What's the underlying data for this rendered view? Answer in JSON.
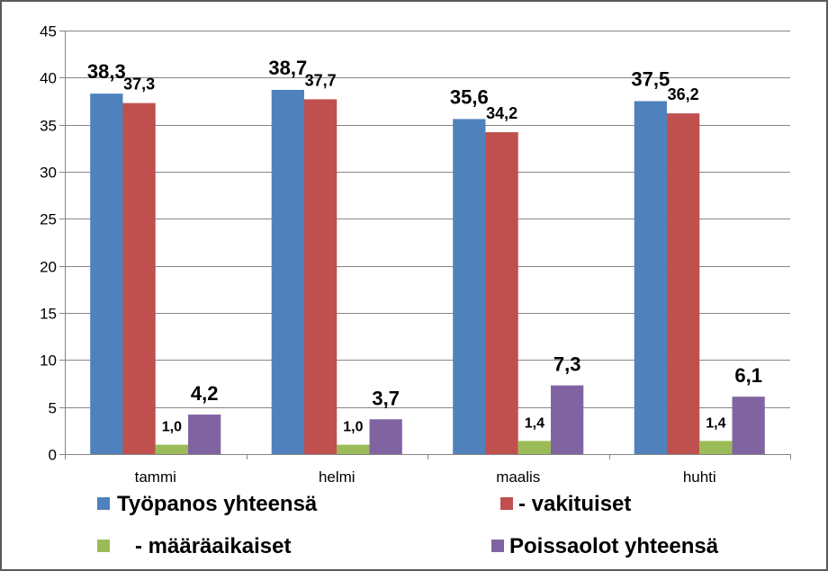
{
  "chart_data": {
    "type": "bar",
    "categories": [
      "tammi",
      "helmi",
      "maalis",
      "huhti"
    ],
    "series": [
      {
        "name": "Työpanos yhteensä",
        "color": "#4F81BD",
        "values": [
          38.3,
          38.7,
          35.6,
          37.5
        ],
        "labels": [
          "38,3",
          "38,7",
          "35,6",
          "37,5"
        ]
      },
      {
        "name": "- vakituiset",
        "color": "#C0504D",
        "values": [
          37.3,
          37.7,
          34.2,
          36.2
        ],
        "labels": [
          "37,3",
          "37,7",
          "34,2",
          "36,2"
        ]
      },
      {
        "name": "- määräaikaiset",
        "color": "#9BBB59",
        "values": [
          1.0,
          1.0,
          1.4,
          1.4
        ],
        "labels": [
          "1,0",
          "1,0",
          "1,4",
          "1,4"
        ]
      },
      {
        "name": "Poissaolot yhteensä",
        "color": "#8064A2",
        "values": [
          4.2,
          3.7,
          7.3,
          6.1
        ],
        "labels": [
          "4,2",
          "3,7",
          "7,3",
          "6,1"
        ]
      }
    ],
    "ylim": [
      0,
      45
    ],
    "yticks": [
      0,
      5,
      10,
      15,
      20,
      25,
      30,
      35,
      40,
      45
    ],
    "grid": true,
    "legend": "bottom"
  }
}
